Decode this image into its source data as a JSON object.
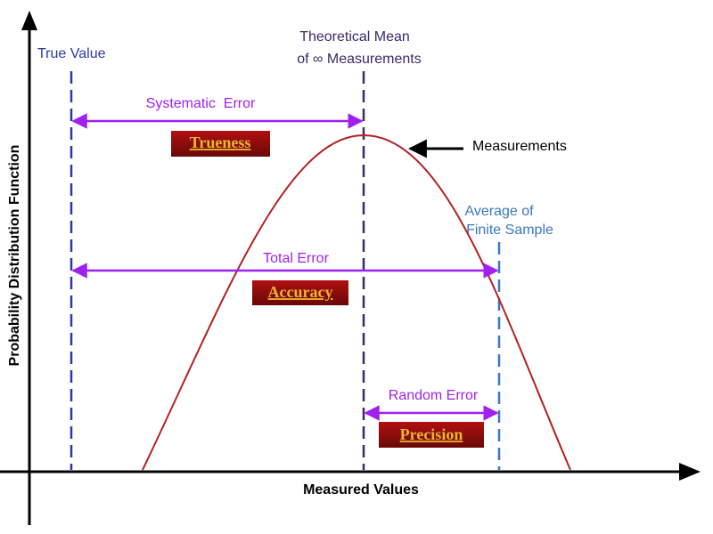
{
  "axes": {
    "x_label": "Measured Values",
    "y_label": "Probability Distribution Function"
  },
  "reference_lines": {
    "true_value": "True Value",
    "theoretical_mean": [
      "Theoretical Mean",
      "of ∞ Measurements"
    ],
    "finite_average": [
      "Average of",
      "Finite Sample"
    ]
  },
  "curve_label": "Measurements",
  "errors": [
    {
      "label": "Systematic  Error",
      "term": "Trueness"
    },
    {
      "label": "Total Error",
      "term": "Accuracy"
    },
    {
      "label": "Random Error",
      "term": "Precision"
    }
  ]
}
